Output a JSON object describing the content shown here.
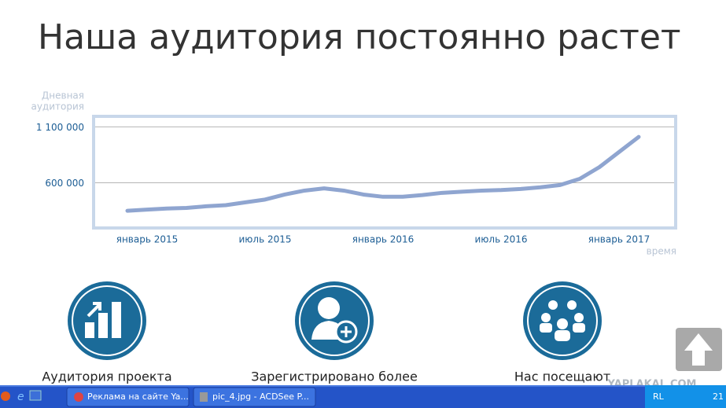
{
  "chart_data": {
    "type": "line",
    "title": "Наша аудитория постоянно растет",
    "y_label": [
      "Дневная",
      "аудитория"
    ],
    "x_label": "время",
    "categories": [
      null,
      "январь 2015",
      null,
      null,
      null,
      null,
      null,
      "июль 2015",
      null,
      null,
      null,
      null,
      null,
      "январь 2016",
      null,
      null,
      null,
      null,
      null,
      "июль 2016",
      null,
      null,
      null,
      null,
      null,
      "январь 2017",
      null
    ],
    "series": [
      {
        "color": "#8fa5d0",
        "values": [
          350000,
          360000,
          370000,
          375000,
          390000,
          400000,
          425000,
          450000,
          495000,
          530000,
          550000,
          530000,
          495000,
          475000,
          475000,
          490000,
          510000,
          520000,
          530000,
          535000,
          545000,
          560000,
          580000,
          635000,
          740000,
          875000,
          1010000
        ]
      }
    ],
    "ylim": [
      210000,
      1180000
    ],
    "yticks": [
      {
        "value": 600000,
        "label": "600 000"
      },
      {
        "value": 1100000,
        "label": "1 100 000"
      }
    ],
    "grid": true
  },
  "features": [
    {
      "label": "Аудитория проекта"
    },
    {
      "label": "Зарегистрировано более"
    },
    {
      "label": "Нас посещают"
    }
  ],
  "taskbar": {
    "buttons": [
      "Реклама на сайте Ya...",
      "pic_4.jpg - ACDSee P..."
    ],
    "language": "RL",
    "clock": "21"
  },
  "watermark": "YAPLAKAL.COM"
}
